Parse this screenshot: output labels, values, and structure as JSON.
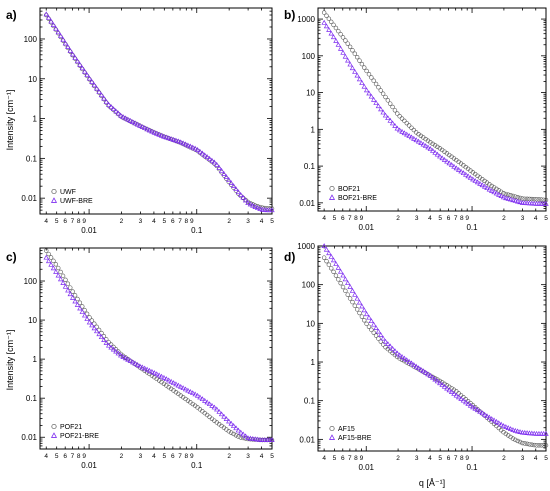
{
  "figure": {
    "xlabel": "q [Å⁻¹]",
    "ylabel": "Intensity [cm⁻¹]"
  },
  "colors": {
    "series_circle": "#555555",
    "series_triangle": "#7d2cf0",
    "axis": "#000000"
  },
  "chart_data": [
    {
      "type": "scatter",
      "panel_label": "a)",
      "x_scale": "log",
      "y_scale": "log",
      "xlim": [
        0.0035,
        0.5
      ],
      "ylim": [
        0.004,
        600
      ],
      "y_ticks": [
        {
          "value": 100,
          "label": "100"
        },
        {
          "value": 10,
          "label": "10"
        },
        {
          "value": 1,
          "label": "1"
        },
        {
          "value": 0.1,
          "label": "0.1"
        },
        {
          "value": 0.01,
          "label": "0.01"
        }
      ],
      "legend_position": "bottom-left",
      "series": [
        {
          "name": "UWF",
          "marker": "circle",
          "x": [
            0.004,
            0.005,
            0.007,
            0.01,
            0.015,
            0.02,
            0.03,
            0.04,
            0.05,
            0.07,
            0.1,
            0.15,
            0.2,
            0.25,
            0.3,
            0.35,
            0.4,
            0.45,
            0.5
          ],
          "y": [
            400,
            160,
            40,
            10,
            2.2,
            1.1,
            0.65,
            0.45,
            0.35,
            0.25,
            0.16,
            0.07,
            0.025,
            0.012,
            0.008,
            0.0065,
            0.0058,
            0.0055,
            0.0055
          ]
        },
        {
          "name": "UWF-BRE",
          "marker": "triangle",
          "x": [
            0.004,
            0.005,
            0.007,
            0.01,
            0.015,
            0.02,
            0.03,
            0.04,
            0.05,
            0.07,
            0.1,
            0.15,
            0.2,
            0.25,
            0.3,
            0.35,
            0.4,
            0.45,
            0.5
          ],
          "y": [
            420,
            170,
            42,
            10.5,
            2.3,
            1.15,
            0.65,
            0.45,
            0.35,
            0.26,
            0.17,
            0.075,
            0.028,
            0.013,
            0.0075,
            0.006,
            0.0052,
            0.005,
            0.005
          ]
        }
      ]
    },
    {
      "type": "scatter",
      "panel_label": "b)",
      "x_scale": "log",
      "y_scale": "log",
      "xlim": [
        0.0035,
        0.5
      ],
      "ylim": [
        0.006,
        2000
      ],
      "y_ticks": [
        {
          "value": 1000,
          "label": "1000"
        },
        {
          "value": 100,
          "label": "100"
        },
        {
          "value": 10,
          "label": "10"
        },
        {
          "value": 1,
          "label": "1"
        },
        {
          "value": 0.1,
          "label": "0.1"
        },
        {
          "value": 0.01,
          "label": "0.01"
        }
      ],
      "legend_position": "bottom-left",
      "series": [
        {
          "name": "BOF21",
          "marker": "circle",
          "x": [
            0.004,
            0.005,
            0.007,
            0.01,
            0.015,
            0.02,
            0.03,
            0.04,
            0.05,
            0.07,
            0.1,
            0.15,
            0.2,
            0.3,
            0.4,
            0.5
          ],
          "y": [
            1500,
            650,
            180,
            40,
            8,
            2.5,
            0.8,
            0.45,
            0.3,
            0.15,
            0.07,
            0.03,
            0.018,
            0.013,
            0.0125,
            0.012
          ]
        },
        {
          "name": "BOF21-BRE",
          "marker": "triangle",
          "x": [
            0.004,
            0.005,
            0.007,
            0.01,
            0.015,
            0.02,
            0.03,
            0.04,
            0.05,
            0.07,
            0.1,
            0.15,
            0.2,
            0.3,
            0.4,
            0.5
          ],
          "y": [
            800,
            300,
            60,
            12,
            2.5,
            1.0,
            0.5,
            0.3,
            0.18,
            0.09,
            0.045,
            0.022,
            0.014,
            0.01,
            0.0095,
            0.0095
          ]
        }
      ]
    },
    {
      "type": "scatter",
      "panel_label": "c)",
      "x_scale": "log",
      "y_scale": "log",
      "xlim": [
        0.0035,
        0.5
      ],
      "ylim": [
        0.005,
        700
      ],
      "y_ticks": [
        {
          "value": 100,
          "label": "100"
        },
        {
          "value": 10,
          "label": "10"
        },
        {
          "value": 1,
          "label": "1"
        },
        {
          "value": 0.1,
          "label": "0.1"
        },
        {
          "value": 0.01,
          "label": "0.01"
        }
      ],
      "legend_position": "bottom-left",
      "series": [
        {
          "name": "POF21",
          "marker": "circle",
          "x": [
            0.004,
            0.005,
            0.007,
            0.01,
            0.015,
            0.02,
            0.03,
            0.04,
            0.05,
            0.07,
            0.1,
            0.15,
            0.2,
            0.25,
            0.3,
            0.4,
            0.5
          ],
          "y": [
            600,
            250,
            55,
            12,
            2.8,
            1.3,
            0.6,
            0.35,
            0.23,
            0.12,
            0.06,
            0.025,
            0.014,
            0.01,
            0.009,
            0.0085,
            0.0085
          ]
        },
        {
          "name": "POF21-BRE",
          "marker": "triangle",
          "x": [
            0.004,
            0.005,
            0.007,
            0.01,
            0.015,
            0.02,
            0.03,
            0.04,
            0.05,
            0.07,
            0.1,
            0.15,
            0.2,
            0.25,
            0.3,
            0.4,
            0.5
          ],
          "y": [
            400,
            160,
            38,
            9,
            2.3,
            1.2,
            0.65,
            0.45,
            0.33,
            0.2,
            0.12,
            0.055,
            0.025,
            0.014,
            0.0095,
            0.0085,
            0.0085
          ]
        }
      ]
    },
    {
      "type": "scatter",
      "panel_label": "d)",
      "x_scale": "log",
      "y_scale": "log",
      "xlim": [
        0.0035,
        0.5
      ],
      "ylim": [
        0.005,
        1000
      ],
      "y_ticks": [
        {
          "value": 1000,
          "label": "1000"
        },
        {
          "value": 100,
          "label": "100"
        },
        {
          "value": 10,
          "label": "10"
        },
        {
          "value": 1,
          "label": "1"
        },
        {
          "value": 0.1,
          "label": "0.1"
        },
        {
          "value": 0.01,
          "label": "0.01"
        }
      ],
      "legend_position": "bottom-left",
      "series": [
        {
          "name": "AF15",
          "marker": "circle",
          "x": [
            0.004,
            0.005,
            0.007,
            0.01,
            0.015,
            0.02,
            0.03,
            0.04,
            0.05,
            0.07,
            0.1,
            0.15,
            0.2,
            0.25,
            0.3,
            0.4,
            0.5
          ],
          "y": [
            500,
            200,
            45,
            10,
            2.5,
            1.3,
            0.7,
            0.45,
            0.32,
            0.18,
            0.08,
            0.03,
            0.015,
            0.01,
            0.008,
            0.007,
            0.007
          ]
        },
        {
          "name": "AF15-BRE",
          "marker": "triangle",
          "x": [
            0.004,
            0.005,
            0.007,
            0.01,
            0.015,
            0.02,
            0.03,
            0.04,
            0.05,
            0.07,
            0.1,
            0.15,
            0.2,
            0.25,
            0.3,
            0.4,
            0.5
          ],
          "y": [
            1000,
            400,
            90,
            18,
            3.5,
            1.6,
            0.75,
            0.45,
            0.28,
            0.14,
            0.07,
            0.035,
            0.022,
            0.017,
            0.015,
            0.014,
            0.014
          ]
        }
      ]
    }
  ],
  "x_ticks": {
    "major": [
      {
        "value": 0.01,
        "label": "0.01"
      },
      {
        "value": 0.1,
        "label": "0.1"
      }
    ],
    "minor": [
      {
        "value": 0.004,
        "label": "4"
      },
      {
        "value": 0.005,
        "label": "5"
      },
      {
        "value": 0.006,
        "label": "6"
      },
      {
        "value": 0.007,
        "label": "7"
      },
      {
        "value": 0.008,
        "label": "8"
      },
      {
        "value": 0.009,
        "label": "9"
      },
      {
        "value": 0.02,
        "label": "2"
      },
      {
        "value": 0.03,
        "label": "3"
      },
      {
        "value": 0.04,
        "label": "4"
      },
      {
        "value": 0.05,
        "label": "5"
      },
      {
        "value": 0.06,
        "label": "6"
      },
      {
        "value": 0.07,
        "label": "7"
      },
      {
        "value": 0.08,
        "label": "8"
      },
      {
        "value": 0.09,
        "label": "9"
      },
      {
        "value": 0.2,
        "label": "2"
      },
      {
        "value": 0.3,
        "label": "3"
      },
      {
        "value": 0.4,
        "label": "4"
      },
      {
        "value": 0.5,
        "label": "5"
      }
    ]
  }
}
